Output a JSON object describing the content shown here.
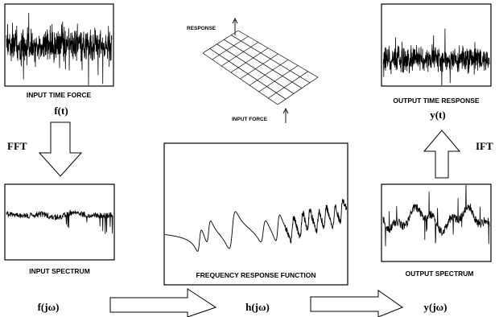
{
  "input_time": {
    "label": "INPUT TIME FORCE",
    "symbol": "f(t)"
  },
  "fft": {
    "label": "FFT"
  },
  "input_spectrum": {
    "label": "INPUT SPECTRUM",
    "symbol": "f(jω)"
  },
  "frf_sketch": {
    "response_label": "RESPONSE",
    "input_force_label": "INPUT FORCE"
  },
  "frf": {
    "label": "FREQUENCY RESPONSE FUNCTION",
    "symbol": "h(jω)"
  },
  "output_time": {
    "label": "OUTPUT TIME RESPONSE",
    "symbol": "y(t)"
  },
  "ift": {
    "label": "IFT"
  },
  "output_spectrum": {
    "label": "OUTPUT SPECTRUM",
    "symbol": "y(jω)"
  }
}
